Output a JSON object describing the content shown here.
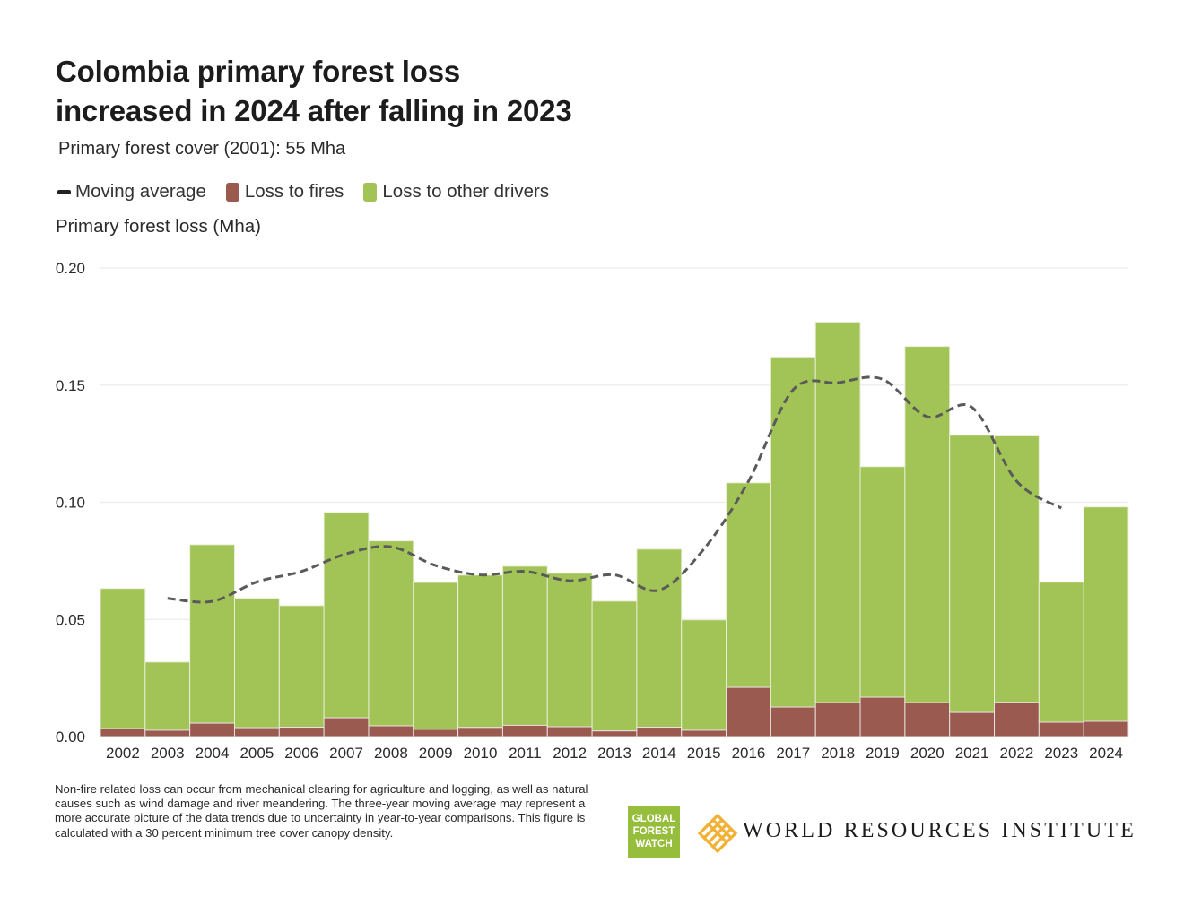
{
  "title_line1": "Colombia primary forest loss",
  "title_line2": "increased in 2024 after falling in 2023",
  "subtitle": "Primary forest cover (2001): 55 Mha",
  "legend": [
    {
      "label": "Moving average",
      "type": "line",
      "color": "#222222"
    },
    {
      "label": "Loss to fires",
      "type": "box",
      "color": "#9a5a50"
    },
    {
      "label": "Loss to other drivers",
      "type": "box",
      "color": "#a2c355"
    }
  ],
  "footnote": "Non-fire related loss can occur from mechanical clearing for agriculture and logging, as well as natural causes such as wind damage and river meandering. The three-year moving average may represent a more accurate picture of the data trends due to uncertainty in year-to-year comparisons. This figure is calculated with a 30 percent minimum tree cover canopy density.",
  "logos": {
    "gfw": [
      "GLOBAL",
      "FOREST",
      "WATCH"
    ],
    "wri": "WORLD RESOURCES INSTITUTE"
  },
  "colors": {
    "fires": "#9a5a50",
    "other": "#a2c355",
    "moving_average": "#5a5a5a",
    "grid": "#ececec",
    "gfw_green": "#97bd3d",
    "wri_gold": "#f2b134"
  },
  "chart_data": {
    "type": "bar",
    "stacked": true,
    "title": "Colombia primary forest loss increased in 2024 after falling in 2023",
    "subtitle": "Primary forest cover (2001): 55 Mha",
    "xlabel": "",
    "ylabel": "Primary forest loss (Mha)",
    "ylim": [
      0,
      0.2
    ],
    "yticks": [
      "0.00",
      "0.05",
      "0.10",
      "0.15",
      "0.20"
    ],
    "grid": true,
    "legend_position": "top-left",
    "categories": [
      "2002",
      "2003",
      "2004",
      "2005",
      "2006",
      "2007",
      "2008",
      "2009",
      "2010",
      "2011",
      "2012",
      "2013",
      "2014",
      "2015",
      "2016",
      "2017",
      "2018",
      "2019",
      "2020",
      "2021",
      "2022",
      "2023",
      "2024"
    ],
    "series": [
      {
        "name": "Loss to fires",
        "values": [
          0.0034,
          0.0027,
          0.0057,
          0.0038,
          0.004,
          0.008,
          0.0046,
          0.0031,
          0.0039,
          0.0048,
          0.0042,
          0.0024,
          0.004,
          0.0027,
          0.021,
          0.0126,
          0.0145,
          0.0168,
          0.0145,
          0.0103,
          0.0146,
          0.0061,
          0.0065
        ]
      },
      {
        "name": "Loss to other drivers",
        "values": [
          0.0598,
          0.0291,
          0.0762,
          0.0552,
          0.0519,
          0.0877,
          0.0789,
          0.0627,
          0.065,
          0.0679,
          0.0655,
          0.0554,
          0.076,
          0.0471,
          0.0873,
          0.1494,
          0.1624,
          0.0984,
          0.152,
          0.1183,
          0.1137,
          0.0598,
          0.0915
        ]
      }
    ],
    "totals": [
      0.0632,
      0.0318,
      0.0819,
      0.059,
      0.0559,
      0.0957,
      0.0835,
      0.0658,
      0.0689,
      0.0727,
      0.0697,
      0.0578,
      0.08,
      0.0498,
      0.1083,
      0.162,
      0.1769,
      0.1152,
      0.1665,
      0.1286,
      0.1283,
      0.0659,
      0.098
    ],
    "moving_average": {
      "name": "Moving average",
      "x": [
        "2003",
        "2004",
        "2005",
        "2006",
        "2007",
        "2008",
        "2009",
        "2010",
        "2011",
        "2012",
        "2013",
        "2014",
        "2015",
        "2016",
        "2017",
        "2018",
        "2019",
        "2020",
        "2021",
        "2022",
        "2023"
      ],
      "values": [
        0.059,
        0.0577,
        0.066,
        0.0705,
        0.078,
        0.081,
        0.073,
        0.069,
        0.0705,
        0.0665,
        0.069,
        0.0625,
        0.08,
        0.109,
        0.148,
        0.151,
        0.1525,
        0.1365,
        0.1405,
        0.109,
        0.0975
      ]
    }
  }
}
